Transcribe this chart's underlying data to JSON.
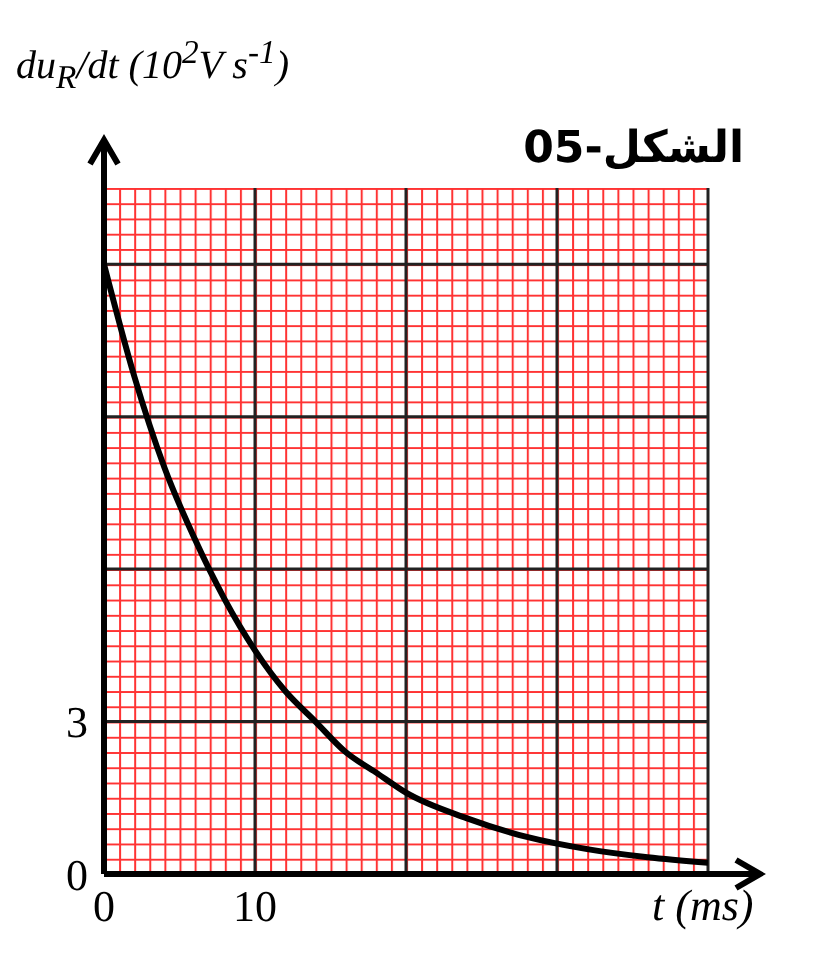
{
  "chart_data": {
    "type": "line",
    "title": "الشكل-05",
    "xlabel": "t (ms)",
    "ylabel": "du$_{R}$/dt (10$^{2}$V s$^{-1}$)",
    "x": [
      0,
      2,
      4,
      6,
      8,
      10,
      12,
      14,
      16,
      18,
      20,
      24,
      28,
      32,
      36,
      40
    ],
    "series": [
      {
        "color": "#000000",
        "values": [
          12,
          9.8,
          8.0,
          6.6,
          5.4,
          4.4,
          3.6,
          3.0,
          2.4,
          2.0,
          1.6,
          1.1,
          0.73,
          0.49,
          0.33,
          0.22
        ]
      }
    ],
    "xlim": [
      0,
      40
    ],
    "xticks": [
      0,
      10
    ],
    "ylim": [
      0,
      13.5
    ],
    "yticks": [
      0,
      3
    ],
    "grid": true,
    "marker": "none",
    "line_style": "solid",
    "legend": false
  }
}
